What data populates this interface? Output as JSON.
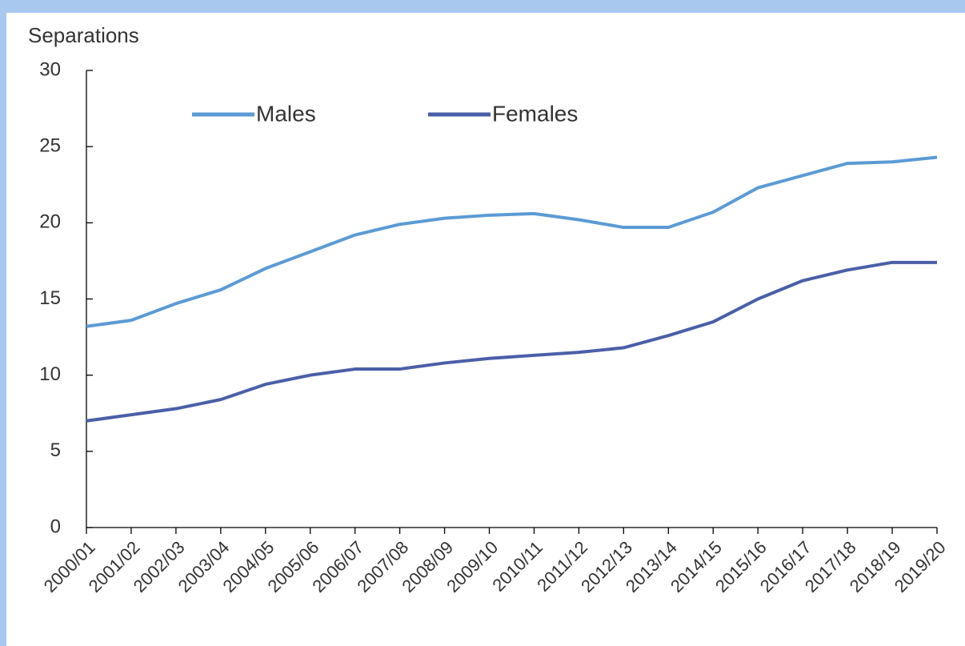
{
  "chart_data": {
    "type": "line",
    "y_label": "Separations",
    "categories": [
      "2000/01",
      "2001/02",
      "2002/03",
      "2003/04",
      "2004/05",
      "2005/06",
      "2006/07",
      "2007/08",
      "2008/09",
      "2009/10",
      "2010/11",
      "2011/12",
      "2012/13",
      "2013/14",
      "2014/15",
      "2015/16",
      "2016/17",
      "2017/18",
      "2018/19",
      "2019/20"
    ],
    "series": [
      {
        "name": "Males",
        "color": "#5b9bd5",
        "values": [
          13.2,
          13.6,
          14.7,
          15.6,
          17.0,
          18.1,
          19.2,
          19.9,
          20.3,
          20.5,
          20.6,
          20.2,
          19.7,
          19.7,
          20.7,
          22.3,
          23.1,
          23.9,
          24.0,
          24.3
        ]
      },
      {
        "name": "Females",
        "color": "#4a5fa8",
        "values": [
          7.0,
          7.4,
          7.8,
          8.4,
          9.4,
          10.0,
          10.4,
          10.4,
          10.8,
          11.1,
          11.3,
          11.5,
          11.8,
          12.6,
          13.5,
          15.0,
          16.2,
          16.9,
          17.4,
          17.4
        ]
      }
    ],
    "ylim": [
      0,
      30
    ],
    "yticks": [
      0,
      5,
      10,
      15,
      20,
      25,
      30
    ],
    "grid": false,
    "legend": "top"
  }
}
